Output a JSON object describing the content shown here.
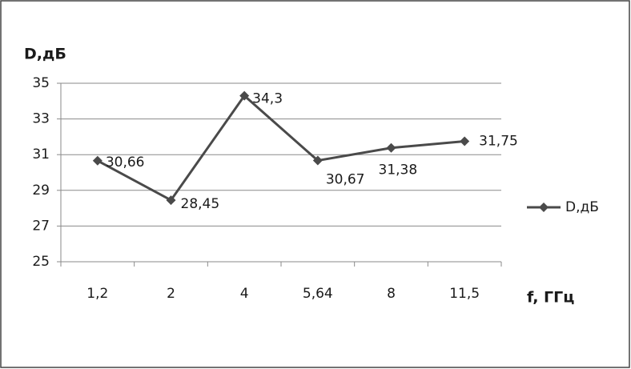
{
  "chart_data": {
    "type": "line",
    "y_label": "D,дБ",
    "x_label": "f, ГГц",
    "categories": [
      "1,2",
      "2",
      "4",
      "5,64",
      "8",
      "11,5"
    ],
    "series": [
      {
        "name": "D,дБ",
        "color": "#4a4a4a",
        "values": [
          30.66,
          28.45,
          34.3,
          30.67,
          31.38,
          31.75
        ],
        "value_labels": [
          "30,66",
          "28,45",
          "34,3",
          "30,67",
          "31,38",
          "31,75"
        ]
      }
    ],
    "ylim": [
      25,
      35
    ],
    "yticks": [
      25,
      27,
      29,
      31,
      33,
      35
    ],
    "grid": true,
    "legend": "right"
  }
}
